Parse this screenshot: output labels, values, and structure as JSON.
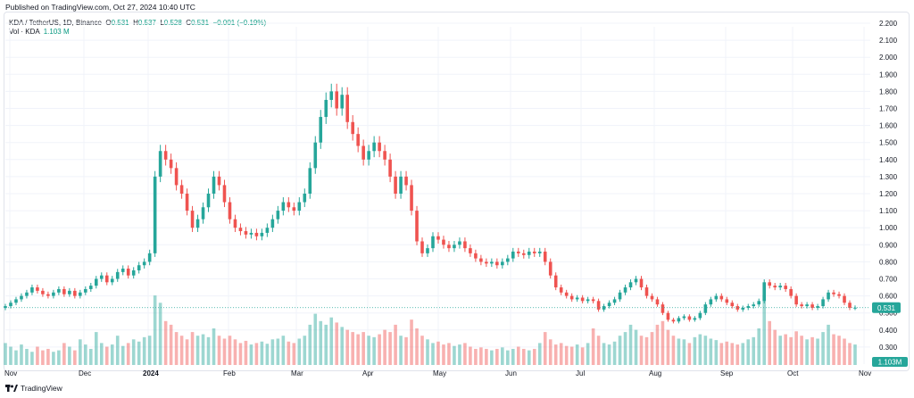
{
  "header": {
    "published": "Published on TradingView.com, Oct 27, 2024 10:40 UTC"
  },
  "legend": {
    "symbol": "KDA / TetherUS, 1D, Binance",
    "o_label": "O",
    "o": "0.531",
    "h_label": "H",
    "h": "0.537",
    "l_label": "L",
    "l": "0.528",
    "c_label": "C",
    "c": "0.531",
    "change": "−0.001 (−0.19%)",
    "vol_label": "Vol · KDA",
    "vol": "1.103 M"
  },
  "footer": {
    "brand": "TradingView",
    "logo": "tradingview-logo-icon"
  },
  "colors": {
    "up": "#26a69a",
    "down": "#ef5350",
    "grid": "#f0f3fa",
    "price_line": "#26a69a"
  },
  "chart_data": {
    "type": "candlestick",
    "price_scale": {
      "min": 0.2,
      "max": 2.2,
      "ticks": [
        "2.200",
        "2.100",
        "2.000",
        "1.900",
        "1.800",
        "1.700",
        "1.600",
        "1.500",
        "1.400",
        "1.300",
        "1.200",
        "1.100",
        "1.000",
        "0.900",
        "0.800",
        "0.700",
        "0.600",
        "0.500",
        "0.400",
        "0.300"
      ]
    },
    "time_axis": [
      "Nov",
      "Dec",
      "2024",
      "Feb",
      "Mar",
      "Apr",
      "May",
      "Jun",
      "Jul",
      "Aug",
      "Sep",
      "Oct",
      "Nov"
    ],
    "last_price_label": "0.531",
    "last_volume_label": "1.103M",
    "closes": [
      0.54,
      0.56,
      0.58,
      0.6,
      0.62,
      0.65,
      0.63,
      0.61,
      0.6,
      0.62,
      0.64,
      0.61,
      0.63,
      0.6,
      0.62,
      0.64,
      0.66,
      0.7,
      0.72,
      0.68,
      0.7,
      0.74,
      0.76,
      0.72,
      0.75,
      0.78,
      0.8,
      0.85,
      1.3,
      1.45,
      1.4,
      1.35,
      1.25,
      1.2,
      1.1,
      1.0,
      1.05,
      1.12,
      1.2,
      1.3,
      1.25,
      1.15,
      1.05,
      1.0,
      0.98,
      0.96,
      0.97,
      0.95,
      0.97,
      1.0,
      1.05,
      1.1,
      1.15,
      1.12,
      1.1,
      1.15,
      1.2,
      1.35,
      1.5,
      1.65,
      1.75,
      1.8,
      1.7,
      1.78,
      1.62,
      1.55,
      1.48,
      1.4,
      1.45,
      1.5,
      1.45,
      1.4,
      1.3,
      1.2,
      1.3,
      1.25,
      1.1,
      0.92,
      0.85,
      0.88,
      0.95,
      0.93,
      0.9,
      0.88,
      0.9,
      0.92,
      0.88,
      0.85,
      0.82,
      0.8,
      0.79,
      0.8,
      0.78,
      0.8,
      0.82,
      0.86,
      0.85,
      0.84,
      0.86,
      0.85,
      0.86,
      0.8,
      0.72,
      0.65,
      0.62,
      0.6,
      0.58,
      0.59,
      0.57,
      0.58,
      0.57,
      0.52,
      0.54,
      0.56,
      0.58,
      0.62,
      0.65,
      0.68,
      0.7,
      0.65,
      0.6,
      0.58,
      0.55,
      0.5,
      0.46,
      0.45,
      0.47,
      0.48,
      0.46,
      0.47,
      0.5,
      0.55,
      0.58,
      0.6,
      0.58,
      0.56,
      0.54,
      0.52,
      0.53,
      0.54,
      0.55,
      0.57,
      0.68,
      0.66,
      0.65,
      0.66,
      0.64,
      0.6,
      0.55,
      0.54,
      0.55,
      0.53,
      0.54,
      0.58,
      0.62,
      0.61,
      0.6,
      0.56,
      0.53,
      0.531
    ],
    "volumes": [
      0.3,
      0.25,
      0.2,
      0.28,
      0.22,
      0.18,
      0.25,
      0.2,
      0.22,
      0.18,
      0.2,
      0.3,
      0.25,
      0.2,
      0.35,
      0.28,
      0.22,
      0.45,
      0.3,
      0.25,
      0.28,
      0.4,
      0.26,
      0.3,
      0.35,
      0.32,
      0.38,
      0.4,
      0.95,
      0.85,
      0.6,
      0.55,
      0.45,
      0.4,
      0.35,
      0.45,
      0.4,
      0.42,
      0.38,
      0.5,
      0.4,
      0.36,
      0.4,
      0.35,
      0.3,
      0.33,
      0.28,
      0.3,
      0.32,
      0.29,
      0.35,
      0.36,
      0.4,
      0.32,
      0.3,
      0.36,
      0.4,
      0.55,
      0.7,
      0.6,
      0.55,
      0.65,
      0.58,
      0.52,
      0.48,
      0.45,
      0.42,
      0.45,
      0.4,
      0.38,
      0.42,
      0.48,
      0.45,
      0.55,
      0.4,
      0.38,
      0.62,
      0.5,
      0.4,
      0.35,
      0.3,
      0.32,
      0.28,
      0.3,
      0.26,
      0.28,
      0.3,
      0.25,
      0.22,
      0.24,
      0.22,
      0.2,
      0.22,
      0.24,
      0.2,
      0.22,
      0.25,
      0.22,
      0.2,
      0.22,
      0.3,
      0.45,
      0.35,
      0.28,
      0.3,
      0.26,
      0.25,
      0.28,
      0.24,
      0.3,
      0.5,
      0.4,
      0.3,
      0.28,
      0.32,
      0.4,
      0.45,
      0.55,
      0.48,
      0.4,
      0.38,
      0.45,
      0.55,
      0.6,
      0.48,
      0.4,
      0.36,
      0.35,
      0.3,
      0.38,
      0.42,
      0.4,
      0.36,
      0.34,
      0.3,
      0.32,
      0.3,
      0.28,
      0.3,
      0.35,
      0.38,
      0.5,
      0.95,
      0.6,
      0.48,
      0.4,
      0.42,
      0.38,
      0.46,
      0.4,
      0.35,
      0.38,
      0.36,
      0.45,
      0.55,
      0.42,
      0.4,
      0.36,
      0.3,
      0.28
    ]
  }
}
